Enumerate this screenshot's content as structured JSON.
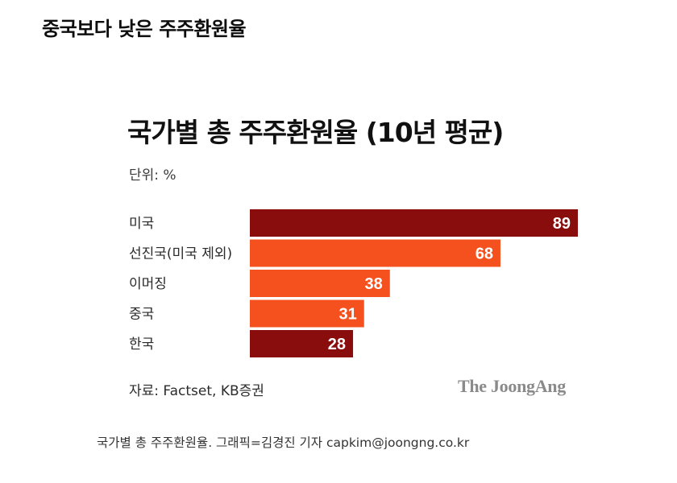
{
  "page_heading": "중국보다 낮은 주주환원율",
  "unit": "단위: %",
  "source": "자료: Factset, KB증권",
  "logo": "The JoongAng",
  "caption": "국가별 총 주주환원율. 그래픽=김경진 기자 capkim@joongng.co.kr",
  "colors": {
    "dark_red": "#8a0d0d",
    "orange": "#f4511e"
  },
  "chart_data": {
    "type": "bar",
    "orientation": "horizontal",
    "title": "국가별 총 주주환원율 (10년 평균)",
    "unit": "%",
    "categories": [
      "미국",
      "선진국(미국 제외)",
      "이머징",
      "중국",
      "한국"
    ],
    "values": [
      89,
      68,
      38,
      31,
      28
    ],
    "bar_colors": [
      "#8a0d0d",
      "#f4511e",
      "#f4511e",
      "#f4511e",
      "#8a0d0d"
    ],
    "xlim": [
      0,
      89
    ],
    "data_labels": true,
    "grid": false,
    "legend": "none"
  }
}
